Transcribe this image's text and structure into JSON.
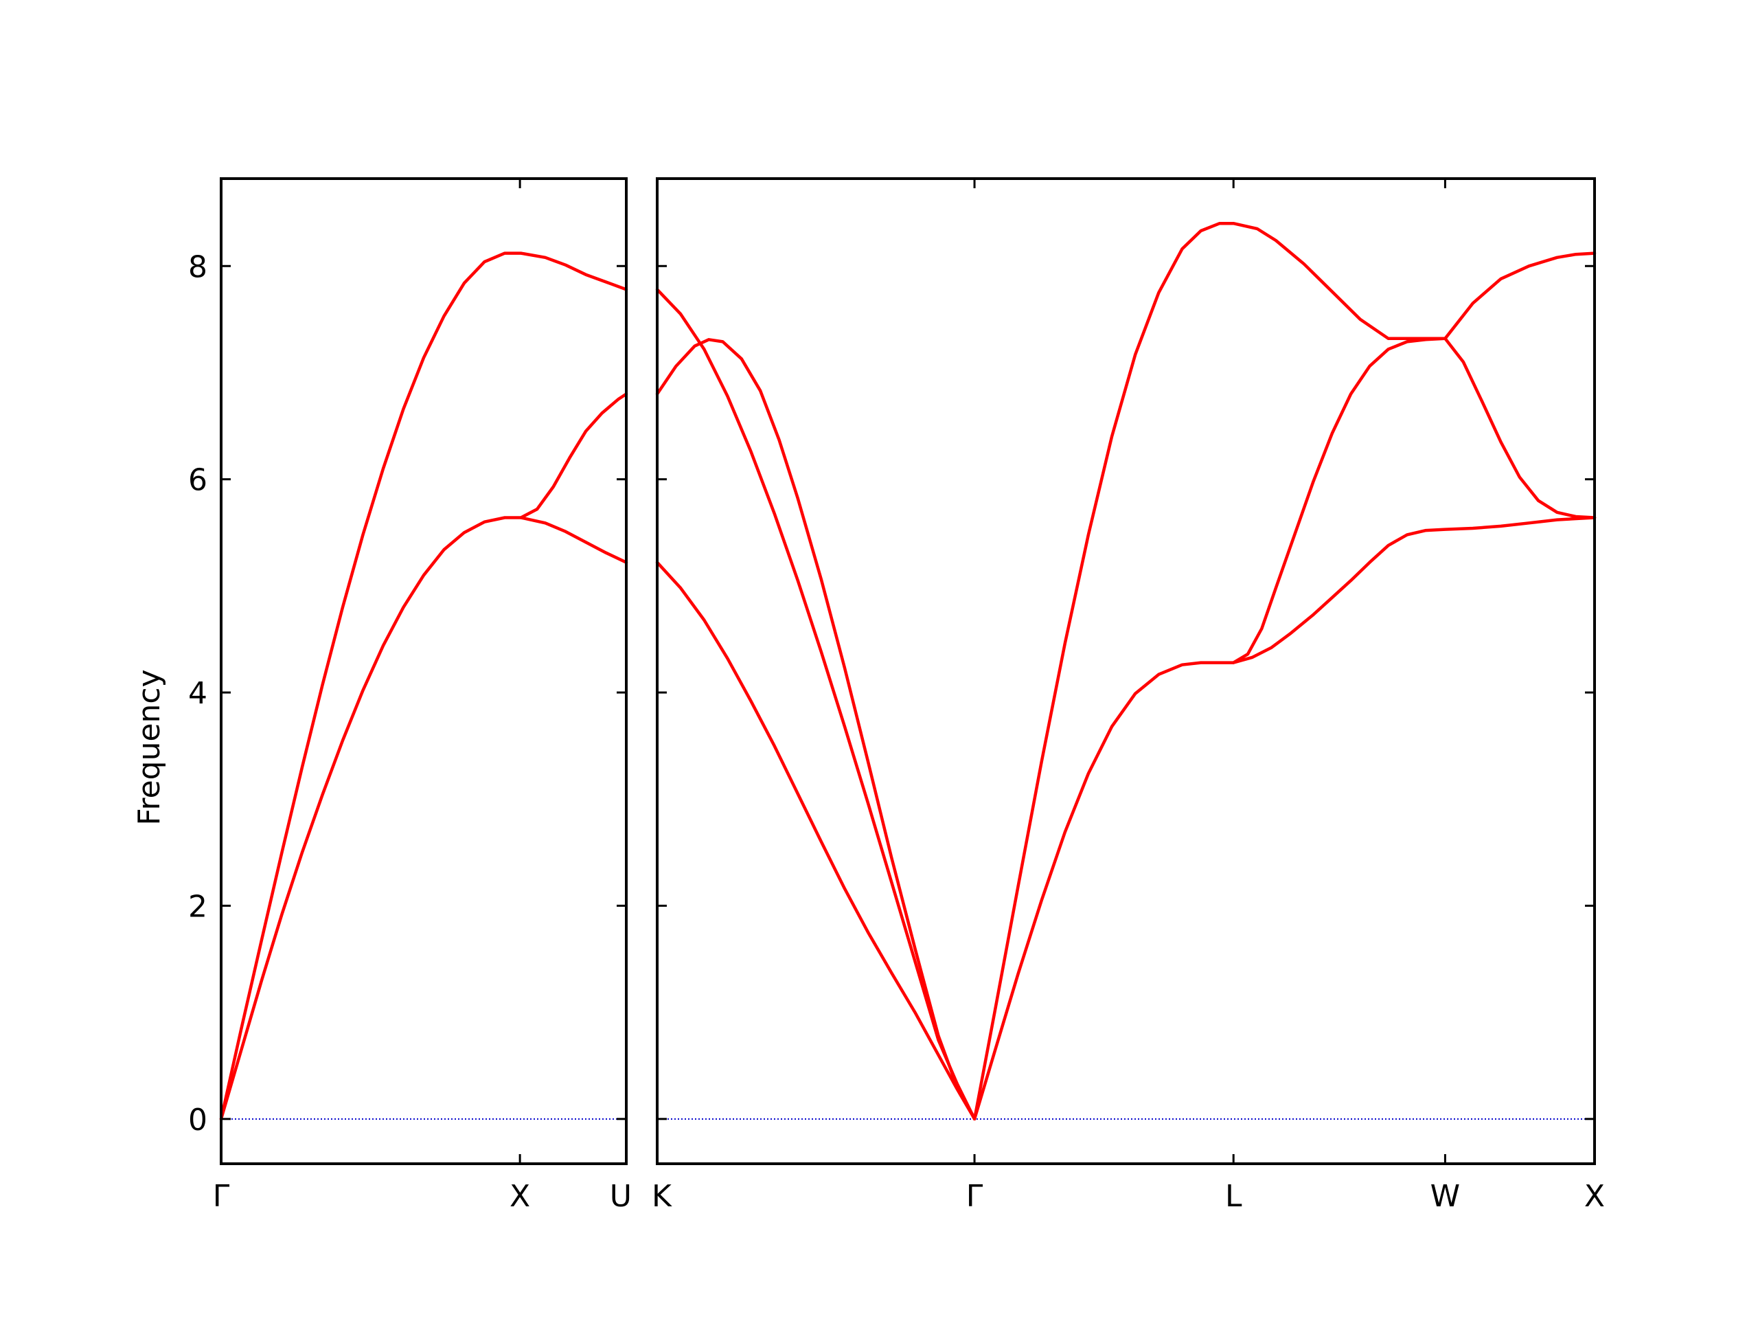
{
  "chart_data": {
    "type": "line",
    "ylabel": "Frequency",
    "yticks": [
      0,
      2,
      4,
      6,
      8
    ],
    "ylim": [
      -0.42,
      8.82
    ],
    "grid": false,
    "line_color": "#ff0000",
    "zero_line_color": "#0000cc",
    "panels": [
      {
        "xlim": [
          0,
          1
        ],
        "xticks": [
          {
            "x": 0,
            "label": "Γ"
          },
          {
            "x": 0.7375,
            "label": "X"
          },
          {
            "x": 1,
            "label": "U"
          }
        ],
        "series": [
          {
            "x": [
              0,
              0.05,
              0.1,
              0.15,
              0.2,
              0.25,
              0.3,
              0.35,
              0.4,
              0.45,
              0.5,
              0.55,
              0.6,
              0.65,
              0.7,
              0.74,
              0.8,
              0.85,
              0.9,
              0.95,
              1.0
            ],
            "y": [
              0,
              0.85,
              1.68,
              2.5,
              3.3,
              4.07,
              4.8,
              5.48,
              6.1,
              6.66,
              7.14,
              7.53,
              7.84,
              8.04,
              8.12,
              8.12,
              8.08,
              8.01,
              7.92,
              7.85,
              7.78
            ]
          },
          {
            "x": [
              0,
              0.05,
              0.1,
              0.15,
              0.2,
              0.25,
              0.3,
              0.35,
              0.4,
              0.45,
              0.5,
              0.55,
              0.6,
              0.65,
              0.7,
              0.74,
              0.8,
              0.85,
              0.9,
              0.95,
              1.0
            ],
            "y": [
              0,
              0.65,
              1.3,
              1.92,
              2.5,
              3.04,
              3.55,
              4.02,
              4.44,
              4.8,
              5.1,
              5.34,
              5.5,
              5.6,
              5.64,
              5.64,
              5.59,
              5.51,
              5.41,
              5.31,
              5.22
            ]
          },
          {
            "x": [
              0.74,
              0.78,
              0.82,
              0.86,
              0.9,
              0.94,
              0.98,
              1.0
            ],
            "y": [
              5.64,
              5.72,
              5.93,
              6.2,
              6.45,
              6.62,
              6.75,
              6.8
            ]
          }
        ]
      },
      {
        "xlim": [
          0,
          1
        ],
        "xticks": [
          {
            "x": 0,
            "label": "K"
          },
          {
            "x": 0.3385,
            "label": "Γ"
          },
          {
            "x": 0.6148,
            "label": "L"
          },
          {
            "x": 0.8406,
            "label": "W"
          },
          {
            "x": 1,
            "label": "X"
          }
        ],
        "series": [
          {
            "x": [
              0,
              0.025,
              0.05,
              0.075,
              0.1,
              0.125,
              0.15,
              0.175,
              0.2,
              0.225,
              0.25,
              0.275,
              0.3,
              0.32,
              0.3385
            ],
            "y": [
              7.78,
              7.55,
              7.22,
              6.78,
              6.26,
              5.68,
              5.05,
              4.38,
              3.68,
              2.96,
              2.22,
              1.48,
              0.74,
              0.33,
              0
            ]
          },
          {
            "x": [
              0,
              0.02,
              0.04,
              0.055,
              0.07,
              0.09,
              0.11,
              0.13,
              0.15,
              0.175,
              0.2,
              0.225,
              0.25,
              0.275,
              0.3,
              0.32,
              0.3385
            ],
            "y": [
              6.8,
              7.06,
              7.25,
              7.31,
              7.29,
              7.13,
              6.83,
              6.37,
              5.82,
              5.06,
              4.23,
              3.35,
              2.45,
              1.6,
              0.78,
              0.3,
              0
            ]
          },
          {
            "x": [
              0,
              0.025,
              0.05,
              0.075,
              0.1,
              0.125,
              0.15,
              0.175,
              0.2,
              0.225,
              0.25,
              0.275,
              0.3,
              0.32,
              0.3385
            ],
            "y": [
              5.22,
              4.98,
              4.68,
              4.32,
              3.92,
              3.5,
              3.05,
              2.6,
              2.16,
              1.75,
              1.37,
              1.0,
              0.6,
              0.28,
              0
            ]
          },
          {
            "x": [
              0.3385,
              0.36,
              0.385,
              0.41,
              0.435,
              0.46,
              0.485,
              0.51,
              0.535,
              0.56,
              0.58,
              0.6,
              0.6148,
              0.64,
              0.66,
              0.69,
              0.72,
              0.75,
              0.78,
              0.81,
              0.8406,
              0.87,
              0.9,
              0.93,
              0.96,
              0.98,
              1.0
            ],
            "y": [
              0,
              1.0,
              2.18,
              3.35,
              4.46,
              5.48,
              6.4,
              7.17,
              7.75,
              8.16,
              8.33,
              8.4,
              8.4,
              8.35,
              8.24,
              8.02,
              7.76,
              7.5,
              7.32,
              7.32,
              7.32,
              7.65,
              7.88,
              8.0,
              8.08,
              8.11,
              8.12
            ]
          },
          {
            "x": [
              0.3385,
              0.36,
              0.385,
              0.41,
              0.435,
              0.46,
              0.485,
              0.51,
              0.535,
              0.56,
              0.58,
              0.6,
              0.6148,
              0.63,
              0.645,
              0.66,
              0.68,
              0.7,
              0.72,
              0.74,
              0.76,
              0.78,
              0.8,
              0.82,
              0.8406,
              0.86,
              0.88,
              0.9,
              0.92,
              0.94,
              0.96,
              0.98,
              1.0
            ],
            "y": [
              0,
              0.63,
              1.36,
              2.05,
              2.69,
              3.24,
              3.68,
              3.99,
              4.17,
              4.26,
              4.28,
              4.28,
              4.28,
              4.36,
              4.6,
              4.98,
              5.48,
              5.98,
              6.43,
              6.8,
              7.06,
              7.22,
              7.29,
              7.31,
              7.32,
              7.1,
              6.73,
              6.35,
              6.02,
              5.8,
              5.69,
              5.65,
              5.64
            ]
          },
          {
            "x": [
              0.6148,
              0.635,
              0.655,
              0.675,
              0.7,
              0.72,
              0.74,
              0.76,
              0.78,
              0.8,
              0.82,
              0.8406,
              0.87,
              0.9,
              0.93,
              0.96,
              1.0
            ],
            "y": [
              4.28,
              4.33,
              4.42,
              4.55,
              4.73,
              4.89,
              5.05,
              5.22,
              5.38,
              5.48,
              5.52,
              5.53,
              5.54,
              5.56,
              5.59,
              5.62,
              5.64
            ]
          }
        ]
      }
    ]
  }
}
